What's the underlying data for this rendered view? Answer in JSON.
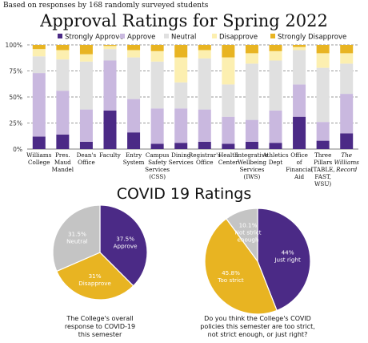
{
  "header": {
    "note": "Based on responses by 168 randomly surveyed students",
    "title": "Approval Ratings for Spring 2022",
    "covid_title": "COVID 19 Ratings"
  },
  "colors": {
    "strongly_approve": "#4b2a86",
    "approve": "#c9b8df",
    "neutral": "#e0e0e0",
    "disapprove": "#fcefb0",
    "strongly_disapprove": "#e8b422",
    "gray": "#c4c4c4"
  },
  "chart_data": [
    {
      "type": "bar",
      "stacked": true,
      "title": "Approval Ratings for Spring 2022",
      "legend": [
        "Strongly Approve",
        "Approve",
        "Neutral",
        "Disapprove",
        "Strongly Disapprove"
      ],
      "legend_placement": "top",
      "y_ticks": [
        "0%",
        "25%",
        "50%",
        "75%",
        "100%"
      ],
      "ylim": [
        0,
        100
      ],
      "categories": [
        [
          "Williams",
          "College"
        ],
        [
          "Pres.",
          "Maud",
          "Mandel"
        ],
        [
          "Dean's",
          "Office"
        ],
        [
          "Faculty"
        ],
        [
          "Entry",
          "System"
        ],
        [
          "Campus",
          "Safety",
          "Services",
          "(CSS)"
        ],
        [
          "Dining",
          "Services"
        ],
        [
          "Registrar's",
          "Office"
        ],
        [
          "Health",
          "Center"
        ],
        [
          "Integrative",
          "Wellbeing",
          "Services",
          "(IWS)"
        ],
        [
          "Athletics",
          "Dept"
        ],
        [
          "Office",
          "of",
          "Financial",
          "Aid"
        ],
        [
          "Three",
          "Pillars",
          "(TABLE,",
          "FAST,",
          "WSU)"
        ],
        [
          "The",
          "Williams",
          "Record"
        ]
      ],
      "italic_category_index": 13,
      "series": [
        {
          "name": "Strongly Approve",
          "values": [
            12,
            14,
            7,
            37,
            16,
            5,
            6,
            7,
            5,
            7,
            6,
            31,
            8,
            15
          ]
        },
        {
          "name": "Approve",
          "values": [
            61,
            42,
            31,
            48,
            32,
            34,
            33,
            31,
            26,
            21,
            31,
            31,
            18,
            38
          ]
        },
        {
          "name": "Neutral",
          "values": [
            16,
            30,
            46,
            11,
            40,
            45,
            25,
            49,
            31,
            54,
            48,
            33,
            52,
            29
          ]
        },
        {
          "name": "Disapprove",
          "values": [
            7,
            9,
            7,
            3,
            7,
            10,
            24,
            8,
            26,
            10,
            9,
            3,
            14,
            10
          ]
        },
        {
          "name": "Strongly Disapprove",
          "values": [
            4,
            5,
            9,
            1,
            5,
            6,
            12,
            5,
            12,
            8,
            6,
            2,
            8,
            8
          ]
        }
      ]
    },
    {
      "type": "pie",
      "caption": [
        "The College's overall",
        "response to COVID-19",
        "this semester"
      ],
      "slices": [
        {
          "label": [
            "37.5%",
            "Approve"
          ],
          "value": 37.5,
          "color": "#4b2a86",
          "text_color": "#ffffff"
        },
        {
          "label": [
            "31%",
            "Disapprove"
          ],
          "value": 31,
          "color": "#e8b422",
          "text_color": "#ffffff"
        },
        {
          "label": [
            "31.5%",
            "Neutral"
          ],
          "value": 31.5,
          "color": "#c4c4c4",
          "text_color": "#ffffff"
        }
      ]
    },
    {
      "type": "pie",
      "caption": [
        "Do you think the College's COVID",
        "policies this semester are too strict,",
        "not strict enough, or just right?"
      ],
      "slices": [
        {
          "label": [
            "44%",
            "Just right"
          ],
          "value": 44,
          "color": "#4b2a86",
          "text_color": "#ffffff"
        },
        {
          "label": [
            "45.8%",
            "Too strict"
          ],
          "value": 45.8,
          "color": "#e8b422",
          "text_color": "#ffffff"
        },
        {
          "label": [
            "10.1%",
            "Not strict",
            "enough"
          ],
          "value": 10.1,
          "color": "#c4c4c4",
          "text_color": "#ffffff"
        }
      ]
    }
  ]
}
